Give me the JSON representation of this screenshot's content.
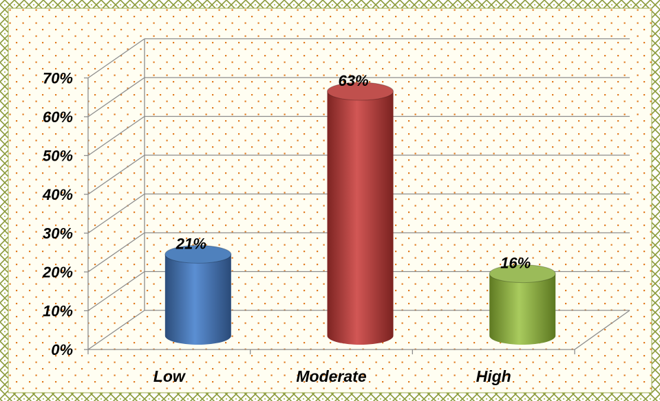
{
  "chart_data": {
    "type": "bar",
    "style": "3d-cylinder",
    "title": "",
    "xlabel": "",
    "ylabel": "",
    "categories": [
      "Low",
      "Moderate",
      "High"
    ],
    "values": [
      21,
      63,
      16
    ],
    "value_labels": [
      "21%",
      "63%",
      "16%"
    ],
    "y_ticks": [
      "0%",
      "10%",
      "20%",
      "30%",
      "40%",
      "50%",
      "60%",
      "70%"
    ],
    "ylim": [
      0,
      70
    ],
    "grid": true,
    "legend": "none",
    "bar_colors": [
      "#4f81bd",
      "#c0504d",
      "#9bbb59"
    ]
  },
  "colors": {
    "border_pattern": "#8a9a3a",
    "plot_background": "#fffef2",
    "dot_color": "#e07a1f",
    "gridline": "#8c8c8c"
  }
}
